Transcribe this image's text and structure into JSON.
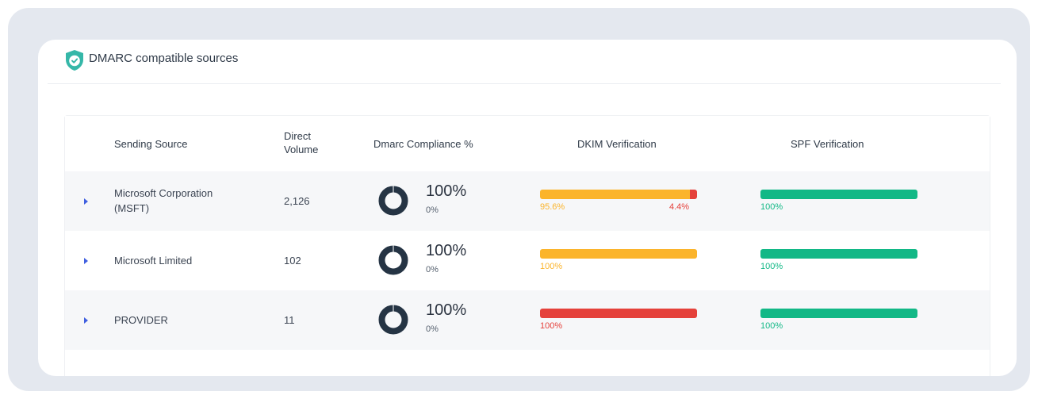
{
  "header": {
    "title": "DMARC compatible sources",
    "icon": "shield-check-icon"
  },
  "table": {
    "columns": {
      "source": "Sending Source",
      "volume_line1": "Direct",
      "volume_line2": "Volume",
      "compliance": "Dmarc Compliance %",
      "dkim": "DKIM Verification",
      "spf": "SPF Verification"
    },
    "rows": [
      {
        "source_line1": "Microsoft Corporation",
        "source_line2": "(MSFT)",
        "volume": "2,126",
        "compliance_main": "100%",
        "compliance_sub": "0%",
        "compliance_fraction": 1.0,
        "dkim_left": "95.6%",
        "dkim_right": "4.4%",
        "dkim_pass_fraction": 0.956,
        "spf_label": "100%",
        "spf_pass_fraction": 1.0
      },
      {
        "source_line1": "Microsoft Limited",
        "source_line2": "",
        "volume": "102",
        "compliance_main": "100%",
        "compliance_sub": "0%",
        "compliance_fraction": 1.0,
        "dkim_left": "100%",
        "dkim_right": "",
        "dkim_pass_fraction": 1.0,
        "spf_label": "100%",
        "spf_pass_fraction": 1.0
      },
      {
        "source_line1": "PROVIDER",
        "source_line2": "",
        "volume": "11",
        "compliance_main": "100%",
        "compliance_sub": "0%",
        "compliance_fraction": 1.0,
        "dkim_left": "100%",
        "dkim_right": "",
        "dkim_pass_fraction": 0.0,
        "spf_label": "100%",
        "spf_pass_fraction": 1.0
      }
    ]
  },
  "colors": {
    "shield": "#35b7a8",
    "donut": "#253444",
    "dkim_pass": "#fbb42b",
    "dkim_fail": "#e5413b",
    "spf_pass": "#12b886",
    "expander": "#3f5fe0"
  }
}
